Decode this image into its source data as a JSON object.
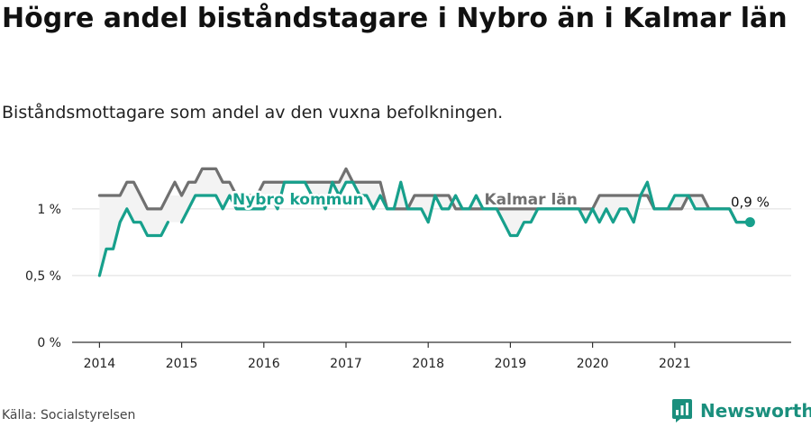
{
  "title": "Högre andel biståndstagare i Nybro än i Kalmar län",
  "subtitle": "Biståndsmottagare som andel av den vuxna befolkningen.",
  "source": "Källa: Socialstyrelsen",
  "brand": {
    "name": "Newsworthy",
    "icon": "bar-chart-logo-icon",
    "color": "#1a8f7d"
  },
  "colors": {
    "nybro": "#17a08c",
    "kalmar": "#707070",
    "area": "#f3f3f3",
    "grid": "#dddddd",
    "axis": "#333333"
  },
  "chart_data": {
    "type": "line",
    "x_ticks": [
      "2014",
      "2015",
      "2016",
      "2017",
      "2018",
      "2019",
      "2020",
      "2021"
    ],
    "y_ticks": [
      "0 %",
      "0,5 %",
      "1 %"
    ],
    "y_tick_values": [
      0,
      0.5,
      1.0
    ],
    "ylim": [
      0,
      1.35
    ],
    "xlim": [
      "2013-09",
      "2022-06"
    ],
    "grid": true,
    "end_label": "0,9 %",
    "series": [
      {
        "name": "Nybro kommun",
        "unit": "%",
        "x": [
          "2014-01",
          "2014-02",
          "2014-03",
          "2014-04",
          "2014-05",
          "2014-06",
          "2014-07",
          "2014-08",
          "2014-09",
          "2014-10",
          "2014-11",
          "2014-12",
          "2015-01",
          "2015-02",
          "2015-03",
          "2015-04",
          "2015-05",
          "2015-06",
          "2015-07",
          "2015-08",
          "2015-09",
          "2015-10",
          "2015-11",
          "2015-12",
          "2016-01",
          "2016-02",
          "2016-03",
          "2016-04",
          "2016-05",
          "2016-06",
          "2016-07",
          "2016-08",
          "2016-09",
          "2016-10",
          "2016-11",
          "2016-12",
          "2017-01",
          "2017-02",
          "2017-03",
          "2017-04",
          "2017-05",
          "2017-06",
          "2017-07",
          "2017-08",
          "2017-09",
          "2017-10",
          "2017-11",
          "2017-12",
          "2018-01",
          "2018-02",
          "2018-03",
          "2018-04",
          "2018-05",
          "2018-06",
          "2018-07",
          "2018-08",
          "2018-09",
          "2018-10",
          "2018-11",
          "2018-12",
          "2019-01",
          "2019-02",
          "2019-03",
          "2019-04",
          "2019-05",
          "2019-06",
          "2019-07",
          "2019-08",
          "2019-09",
          "2019-10",
          "2019-11",
          "2019-12",
          "2020-01",
          "2020-02",
          "2020-03",
          "2020-04",
          "2020-05",
          "2020-06",
          "2020-07",
          "2020-08",
          "2020-09",
          "2020-10",
          "2020-11",
          "2020-12",
          "2021-01",
          "2021-02",
          "2021-03",
          "2021-04",
          "2021-05",
          "2021-06",
          "2021-07",
          "2021-08",
          "2021-09",
          "2021-10",
          "2021-11",
          "2021-12"
        ],
        "values": [
          0.5,
          0.7,
          0.7,
          0.9,
          1.0,
          0.9,
          0.9,
          0.8,
          0.8,
          0.8,
          0.9,
          null,
          0.9,
          1.0,
          1.1,
          1.1,
          1.1,
          1.1,
          1.0,
          1.1,
          1.0,
          1.0,
          1.0,
          1.0,
          1.0,
          1.1,
          1.0,
          1.2,
          1.2,
          1.2,
          1.2,
          1.1,
          1.1,
          1.0,
          1.2,
          1.1,
          1.2,
          1.2,
          1.1,
          1.1,
          1.0,
          1.1,
          1.0,
          1.0,
          1.2,
          1.0,
          1.0,
          1.0,
          0.9,
          1.1,
          1.0,
          1.0,
          1.1,
          1.0,
          1.0,
          1.1,
          1.0,
          1.0,
          1.0,
          0.9,
          0.8,
          0.8,
          0.9,
          0.9,
          1.0,
          1.0,
          1.0,
          1.0,
          1.0,
          1.0,
          1.0,
          0.9,
          1.0,
          0.9,
          1.0,
          0.9,
          1.0,
          1.0,
          0.9,
          1.1,
          1.2,
          1.0,
          1.0,
          1.0,
          1.1,
          1.1,
          1.1,
          1.0,
          1.0,
          1.0,
          1.0,
          1.0,
          1.0,
          0.9,
          0.9,
          0.9
        ]
      },
      {
        "name": "Kalmar län",
        "unit": "%",
        "x": [
          "2014-01",
          "2014-02",
          "2014-03",
          "2014-04",
          "2014-05",
          "2014-06",
          "2014-07",
          "2014-08",
          "2014-09",
          "2014-10",
          "2014-11",
          "2014-12",
          "2015-01",
          "2015-02",
          "2015-03",
          "2015-04",
          "2015-05",
          "2015-06",
          "2015-07",
          "2015-08",
          "2015-09",
          "2015-10",
          "2015-11",
          "2015-12",
          "2016-01",
          "2016-02",
          "2016-03",
          "2016-04",
          "2016-05",
          "2016-06",
          "2016-07",
          "2016-08",
          "2016-09",
          "2016-10",
          "2016-11",
          "2016-12",
          "2017-01",
          "2017-02",
          "2017-03",
          "2017-04",
          "2017-05",
          "2017-06",
          "2017-07",
          "2017-08",
          "2017-09",
          "2017-10",
          "2017-11",
          "2017-12",
          "2018-01",
          "2018-02",
          "2018-03",
          "2018-04",
          "2018-05",
          "2018-06",
          "2018-07",
          "2018-08",
          "2018-09",
          "2018-10",
          "2018-11",
          "2018-12",
          "2019-01",
          "2019-02",
          "2019-03",
          "2019-04",
          "2019-05",
          "2019-06",
          "2019-07",
          "2019-08",
          "2019-09",
          "2019-10",
          "2019-11",
          "2019-12",
          "2020-01",
          "2020-02",
          "2020-03",
          "2020-04",
          "2020-05",
          "2020-06",
          "2020-07",
          "2020-08",
          "2020-09",
          "2020-10",
          "2020-11",
          "2020-12",
          "2021-01",
          "2021-02",
          "2021-03",
          "2021-04",
          "2021-05",
          "2021-06",
          "2021-07",
          "2021-08",
          "2021-09",
          "2021-10",
          "2021-11",
          "2021-12"
        ],
        "values": [
          1.1,
          1.1,
          1.1,
          1.1,
          1.2,
          1.2,
          1.1,
          1.0,
          1.0,
          1.0,
          1.1,
          1.2,
          1.1,
          1.2,
          1.2,
          1.3,
          1.3,
          1.3,
          1.2,
          1.2,
          1.1,
          1.1,
          1.1,
          1.1,
          1.2,
          1.2,
          1.2,
          1.2,
          1.2,
          1.2,
          1.2,
          1.2,
          1.2,
          1.2,
          1.2,
          1.2,
          1.3,
          1.2,
          1.2,
          1.2,
          1.2,
          1.2,
          1.0,
          1.0,
          1.0,
          1.0,
          1.1,
          1.1,
          1.1,
          1.1,
          1.1,
          1.1,
          1.0,
          1.0,
          1.0,
          1.0,
          1.0,
          1.0,
          1.0,
          1.0,
          1.0,
          1.0,
          1.0,
          1.0,
          1.0,
          1.0,
          1.0,
          1.0,
          1.0,
          1.0,
          1.0,
          1.0,
          1.0,
          1.1,
          1.1,
          1.1,
          1.1,
          1.1,
          1.1,
          1.1,
          1.1,
          1.0,
          1.0,
          1.0,
          1.0,
          1.0,
          1.1,
          1.1,
          1.1,
          1.0,
          1.0,
          1.0,
          1.0,
          0.9,
          0.9,
          0.9
        ]
      }
    ]
  }
}
